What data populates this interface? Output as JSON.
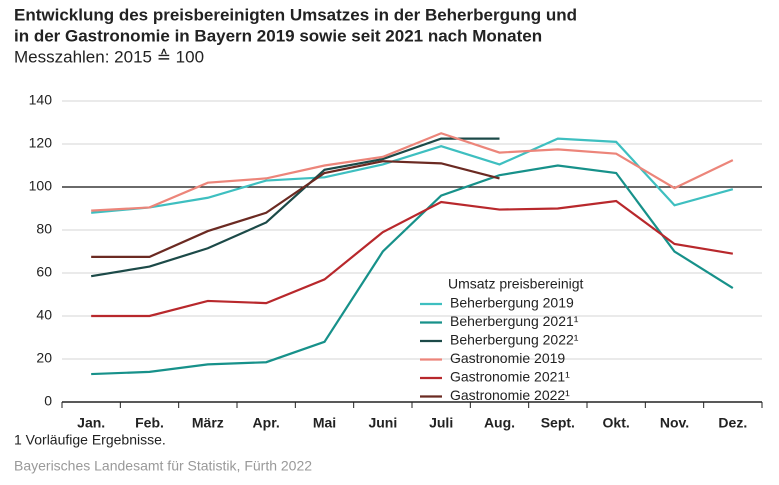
{
  "chart_data": {
    "type": "line",
    "title_lines": [
      "Entwicklung des preisbereinigten Umsatzes in der Beherbergung und",
      "in der Gastronomie in Bayern 2019 sowie seit 2021 nach Monaten"
    ],
    "subtitle": "Messzahlen: 2015 ≙ 100",
    "categories": [
      "Jan.",
      "Feb.",
      "März",
      "Apr.",
      "Mai",
      "Juni",
      "Juli",
      "Aug.",
      "Sept.",
      "Okt.",
      "Nov.",
      "Dez."
    ],
    "series": [
      {
        "name": "Beherbergung 2019",
        "color": "#3ebfc0",
        "values": [
          88,
          90.5,
          95,
          103,
          104.5,
          110.5,
          119,
          110.5,
          122.5,
          121,
          91.5,
          99
        ]
      },
      {
        "name": "Beherbergung 2021¹",
        "color": "#17918a",
        "values": [
          13,
          14,
          17.5,
          18.5,
          28,
          70,
          96,
          105.5,
          110,
          106.5,
          70,
          53
        ]
      },
      {
        "name": "Beherbergung 2022¹",
        "color": "#1c4a48",
        "values": [
          58.5,
          63,
          71.5,
          83.5,
          108,
          113,
          122.5,
          122.5,
          null,
          null,
          null,
          null
        ]
      },
      {
        "name": "Gastronomie 2019",
        "color": "#ec857a",
        "values": [
          89,
          90.5,
          102,
          104,
          110,
          114,
          125,
          116,
          117.5,
          115.5,
          99.5,
          112.5
        ]
      },
      {
        "name": "Gastronomie 2021¹",
        "color": "#b8282c",
        "values": [
          40,
          40,
          47,
          46,
          57,
          79,
          93,
          89.5,
          90,
          93.5,
          73.5,
          69
        ]
      },
      {
        "name": "Gastronomie 2022¹",
        "color": "#6b2a22",
        "values": [
          67.5,
          67.5,
          79.5,
          88,
          106.5,
          112,
          111,
          104,
          null,
          null,
          null,
          null
        ]
      }
    ],
    "ylim": [
      0,
      140
    ],
    "yticks": [
      0,
      20,
      40,
      60,
      80,
      100,
      120,
      140
    ],
    "grid": true,
    "reference_line": 100,
    "legend_title": "Umsatz preisbereinigt",
    "legend_position": "lower center",
    "footnote": "1  Vorläufige Ergebnisse.",
    "source": "Bayerisches Landesamt für Statistik, Fürth 2022"
  }
}
